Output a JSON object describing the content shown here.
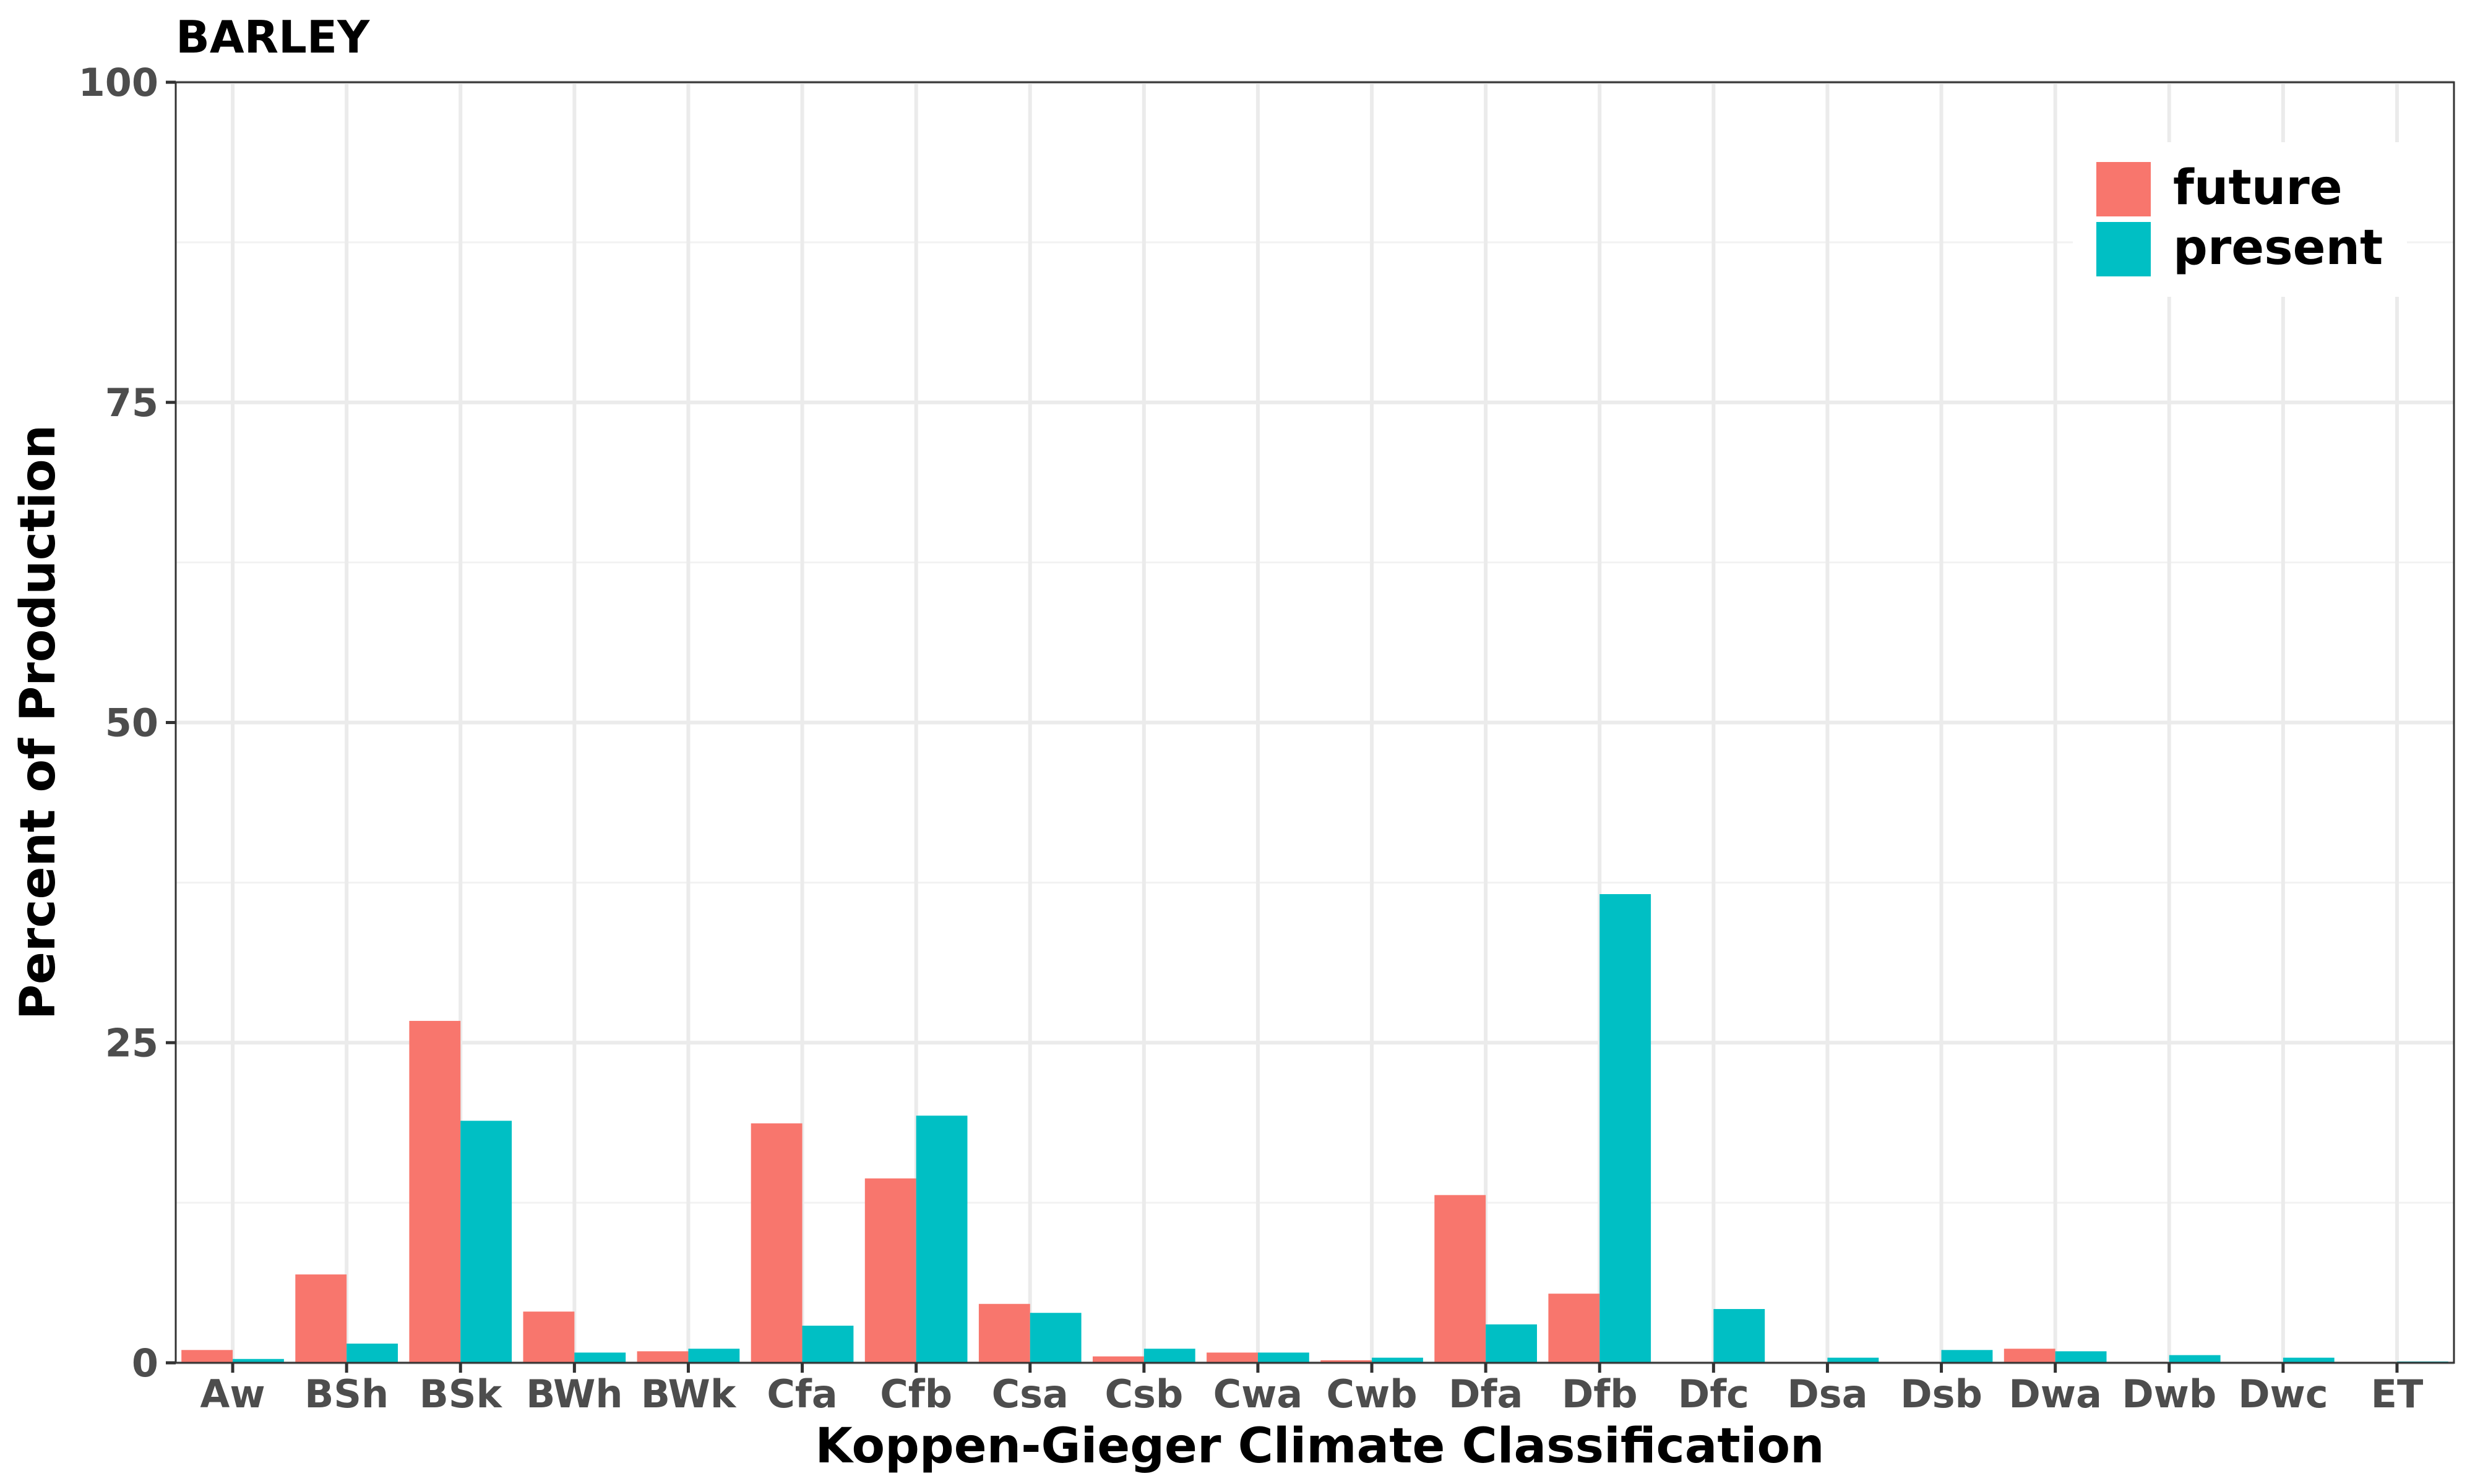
{
  "chart_data": {
    "type": "bar",
    "title": "BARLEY",
    "xlabel": "Koppen-Gieger Climate Classification",
    "ylabel": "Percent of Production",
    "ylim": [
      0,
      100
    ],
    "yticks": [
      0,
      25,
      50,
      75,
      100
    ],
    "grid": true,
    "legend_position": "top-right",
    "categories": [
      "Aw",
      "BSh",
      "BSk",
      "BWh",
      "BWk",
      "Cfa",
      "Cfb",
      "Csa",
      "Csb",
      "Cwa",
      "Cwb",
      "Dfa",
      "Dfb",
      "Dfc",
      "Dsa",
      "Dsb",
      "Dwa",
      "Dwb",
      "Dwc",
      "ET"
    ],
    "series": [
      {
        "name": "future",
        "color": "#F8766D",
        "values": [
          1.0,
          6.9,
          26.7,
          4.0,
          0.9,
          18.7,
          14.4,
          4.6,
          0.5,
          0.8,
          0.2,
          13.1,
          5.4,
          0.0,
          0.0,
          0.0,
          1.1,
          0.0,
          0.0,
          0.0
        ]
      },
      {
        "name": "present",
        "color": "#00BFC4",
        "values": [
          0.3,
          1.5,
          18.9,
          0.8,
          1.1,
          2.9,
          19.3,
          3.9,
          1.1,
          0.8,
          0.4,
          3.0,
          36.6,
          4.2,
          0.4,
          1.0,
          0.9,
          0.6,
          0.4,
          0.1
        ]
      }
    ]
  }
}
